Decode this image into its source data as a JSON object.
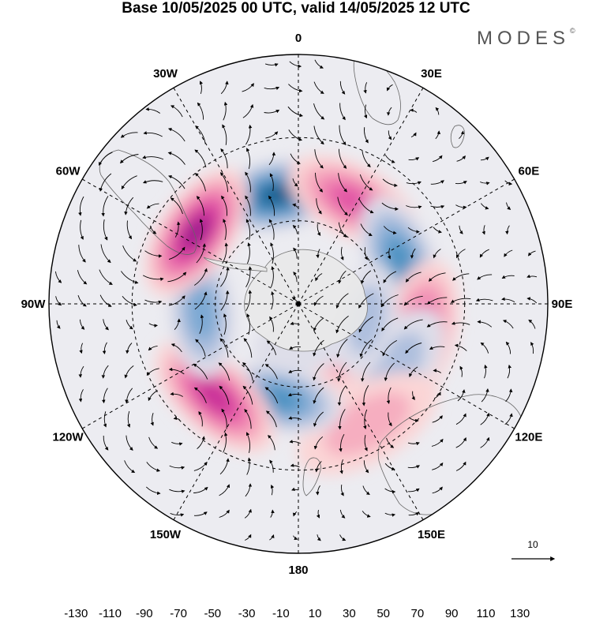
{
  "title": "Base 10/05/2025 00 UTC, valid 14/05/2025 12 UTC",
  "brand": "MODES",
  "brand_mark": "©",
  "longitude_labels": [
    "0",
    "30E",
    "60E",
    "90E",
    "120E",
    "150E",
    "180",
    "150W",
    "120W",
    "90W",
    "60W",
    "30W"
  ],
  "reference_vector": {
    "label": "10"
  },
  "colorbar": {
    "colors": [
      "#173b5a",
      "#1e5c8a",
      "#2e7bb0",
      "#4e93c3",
      "#7ba9d3",
      "#aebfde",
      "#dedee9",
      "#ffffff",
      "#fbd5d6",
      "#f6aec0",
      "#f082b0",
      "#e255a6",
      "#c92e98",
      "#9c1a8e",
      "#5e0c78"
    ],
    "tick_labels": [
      "-130",
      "-110",
      "-90",
      "-70",
      "-50",
      "-30",
      "-10",
      "10",
      "30",
      "50",
      "70",
      "90",
      "110",
      "130"
    ]
  },
  "anomaly_centers": [
    {
      "name": "cell-1",
      "sign": "neg",
      "level": 6,
      "lat": -50,
      "lon": -10
    },
    {
      "name": "cell-2",
      "sign": "pos",
      "level": 4,
      "lat": -48,
      "lon": 28
    },
    {
      "name": "cell-3",
      "sign": "neg",
      "level": 4,
      "lat": -50,
      "lon": 68
    },
    {
      "name": "cell-4",
      "sign": "pos",
      "level": 4,
      "lat": -45,
      "lon": 103
    },
    {
      "name": "cell-5",
      "sign": "neg",
      "level": 2,
      "lat": -48,
      "lon": 125
    },
    {
      "name": "cell-6",
      "sign": "pos",
      "level": 2,
      "lat": -40,
      "lon": 150
    },
    {
      "name": "cell-7",
      "sign": "pos",
      "level": 3,
      "lat": -65,
      "lon": 125
    },
    {
      "name": "cell-8",
      "sign": "neg",
      "level": 2,
      "lat": -65,
      "lon": 103
    },
    {
      "name": "cell-9",
      "sign": "neg",
      "level": 4,
      "lat": -55,
      "lon": -168
    },
    {
      "name": "cell-10",
      "sign": "pos",
      "level": 5,
      "lat": -45,
      "lon": -138
    },
    {
      "name": "cell-11",
      "sign": "neg",
      "level": 3,
      "lat": -55,
      "lon": -95
    },
    {
      "name": "cell-12",
      "sign": "pos",
      "level": 6,
      "lat": -45,
      "lon": -55
    },
    {
      "name": "cell-13",
      "sign": "neg",
      "level": 1,
      "lat": -75,
      "lon": 175
    }
  ]
}
